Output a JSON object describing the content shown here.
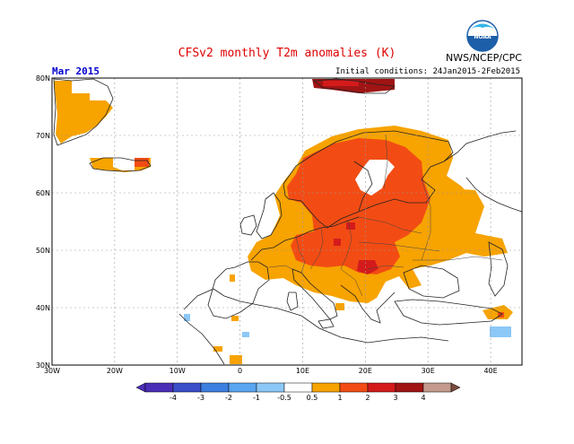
{
  "header": {
    "title": "CFSv2 monthly T2m anomalies (K)",
    "agency": "NWS/NCEP/CPC",
    "month": "Mar 2015",
    "initial_conditions": "Initial conditions: 24Jan2015-2Feb2015"
  },
  "logo": {
    "text": "NOAA"
  },
  "colors": {
    "c_m4": "#4b2eb8",
    "c_m3": "#3b4fc9",
    "c_m2": "#3d7fe0",
    "c_m1": "#5aa6f0",
    "c_m05": "#8cc8f7",
    "c_p05": "#f7a300",
    "c_p1": "#f24c14",
    "c_p2": "#d41b1b",
    "c_p3": "#a01414",
    "c_p4": "#c49a8e",
    "c_p5": "#7a4a3c"
  },
  "map": {
    "lon_range": [
      -30,
      45
    ],
    "lat_range": [
      30,
      80
    ],
    "x_ticks": [
      "30W",
      "20W",
      "10W",
      "0",
      "10E",
      "20E",
      "30E",
      "40E"
    ],
    "y_ticks": [
      "30N",
      "40N",
      "50N",
      "60N",
      "70N",
      "80N"
    ]
  },
  "colorbar": {
    "labels": [
      "-4",
      "-3",
      "-2",
      "-1",
      "-0.5",
      "0.5",
      "1",
      "2",
      "3",
      "4"
    ]
  }
}
